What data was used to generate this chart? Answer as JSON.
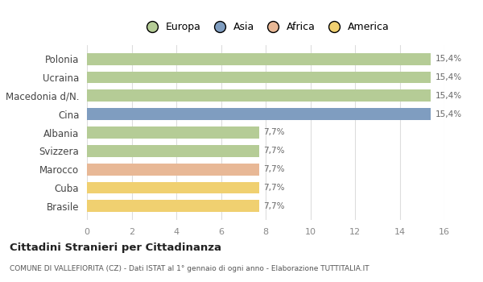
{
  "categories": [
    "Polonia",
    "Ucraina",
    "Macedonia d/N.",
    "Cina",
    "Albania",
    "Svizzera",
    "Marocco",
    "Cuba",
    "Brasile"
  ],
  "values": [
    15.4,
    15.4,
    15.4,
    15.4,
    7.7,
    7.7,
    7.7,
    7.7,
    7.7
  ],
  "bar_colors": [
    "#b5cc96",
    "#b5cc96",
    "#b5cc96",
    "#7f9dc0",
    "#b5cc96",
    "#b5cc96",
    "#e8b896",
    "#f0d070",
    "#f0d070"
  ],
  "bar_labels": [
    "15,4%",
    "15,4%",
    "15,4%",
    "15,4%",
    "7,7%",
    "7,7%",
    "7,7%",
    "7,7%",
    "7,7%"
  ],
  "legend_labels": [
    "Europa",
    "Asia",
    "Africa",
    "America"
  ],
  "legend_colors": [
    "#b5cc96",
    "#7f9dc0",
    "#e8b896",
    "#f0d070"
  ],
  "xlim": [
    0,
    16
  ],
  "xticks": [
    0,
    2,
    4,
    6,
    8,
    10,
    12,
    14,
    16
  ],
  "title": "Cittadini Stranieri per Cittadinanza",
  "subtitle": "COMUNE DI VALLEFIORITA (CZ) - Dati ISTAT al 1° gennaio di ogni anno - Elaborazione TUTTITALIA.IT",
  "background_color": "#ffffff",
  "grid_color": "#dddddd"
}
